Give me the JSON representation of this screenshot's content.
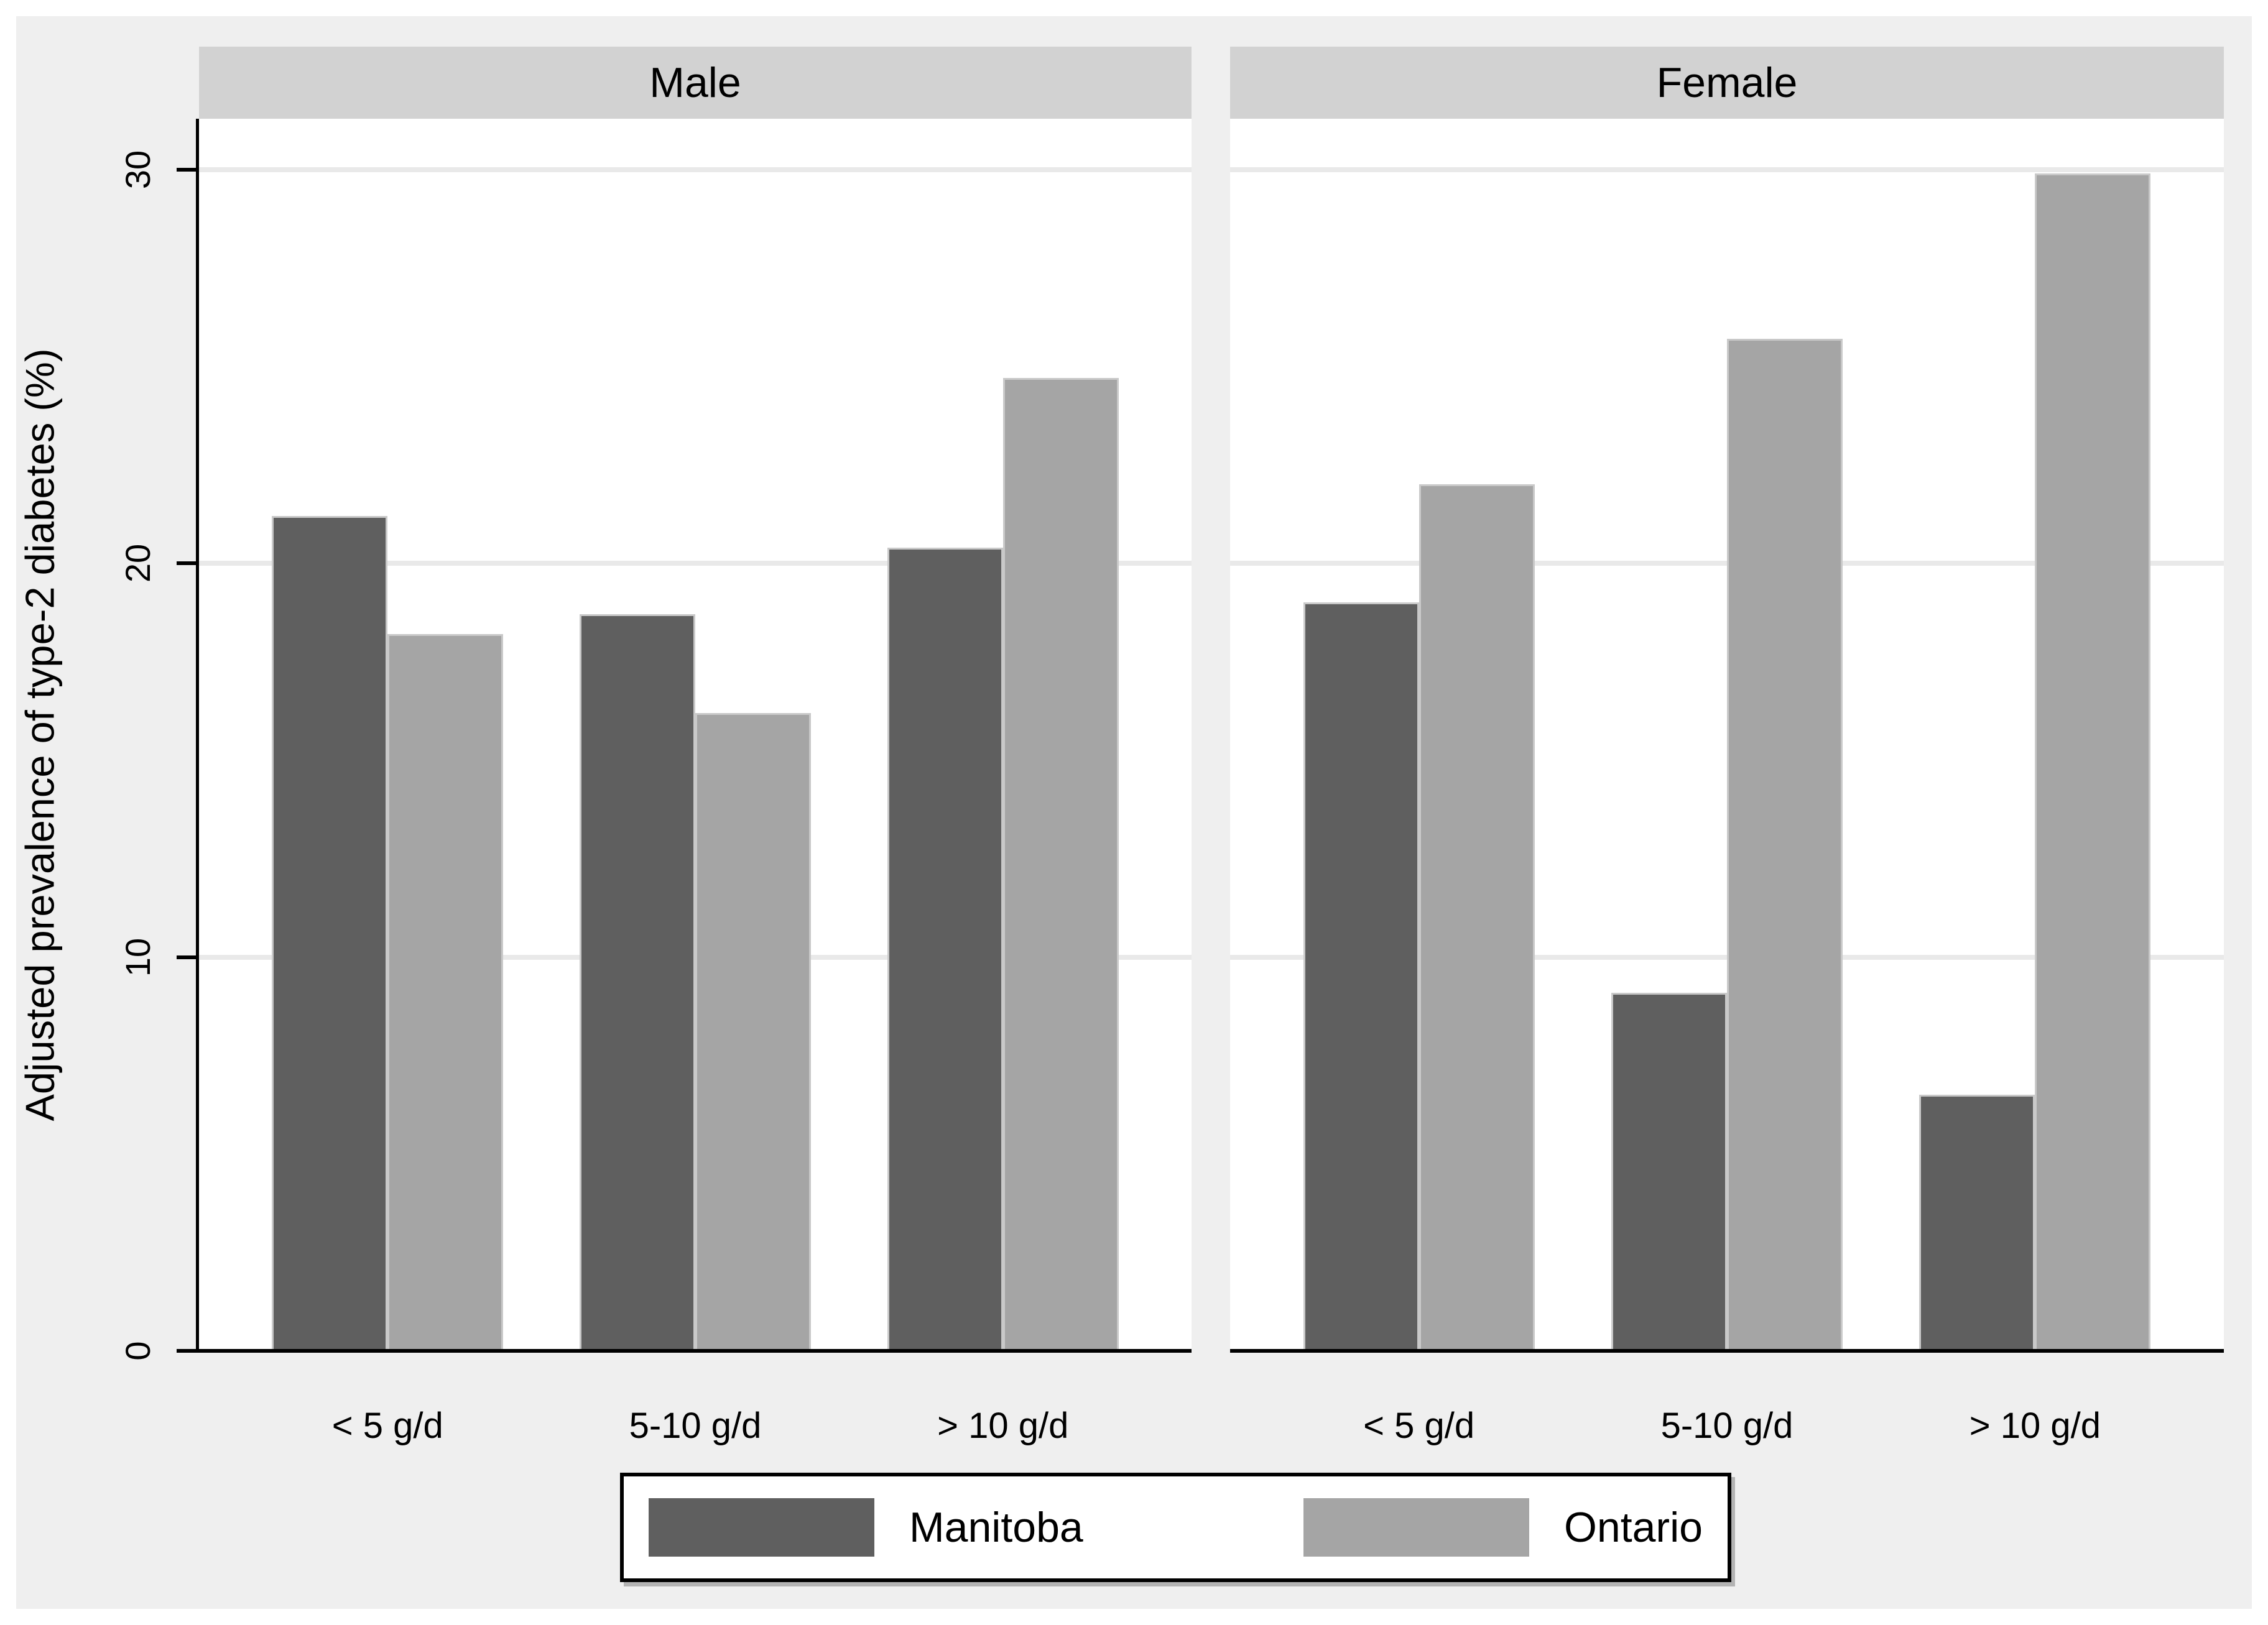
{
  "figure": {
    "background_color": "#efefef",
    "plot_background_color": "#ffffff",
    "panel_header_color": "#d2d2d2",
    "gridline_color": "#e9e9e9",
    "bar_outline_color": "#c9c9c9"
  },
  "chart_data": {
    "type": "bar",
    "title": "",
    "ylabel": "Adjusted prevalence of type-2 diabetes (%)",
    "xlabel": "",
    "categories": [
      "< 5 g/d",
      "5-10 g/d",
      "> 10 g/d"
    ],
    "yticks": [
      0,
      10,
      20,
      30
    ],
    "ytick_labels": [
      "0",
      "10",
      "20",
      "30"
    ],
    "ylim": [
      0,
      31.3
    ],
    "grid": true,
    "panels": [
      {
        "title": "Male",
        "series": [
          {
            "name": "Manitoba",
            "values": [
              21.2,
              18.7,
              20.4
            ]
          },
          {
            "name": "Ontario",
            "values": [
              18.2,
              16.2,
              24.7
            ]
          }
        ]
      },
      {
        "title": "Female",
        "series": [
          {
            "name": "Manitoba",
            "values": [
              19.0,
              9.1,
              6.5
            ]
          },
          {
            "name": "Ontario",
            "values": [
              22.0,
              25.7,
              29.9
            ]
          }
        ]
      }
    ],
    "legend": {
      "position": "bottom",
      "entries": [
        "Manitoba",
        "Ontario"
      ]
    },
    "colors": {
      "Manitoba": "#5f5f5f",
      "Ontario": "#a5a5a5"
    }
  }
}
